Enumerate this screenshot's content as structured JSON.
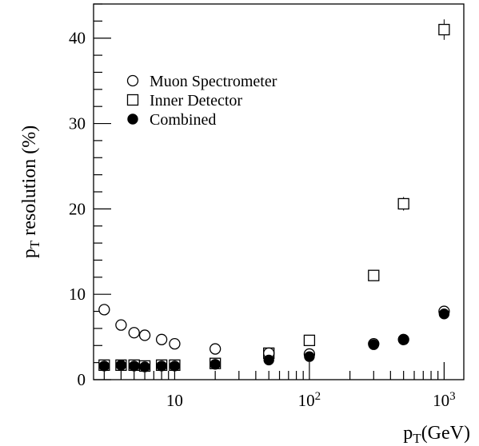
{
  "chart_data": {
    "type": "scatter",
    "x_scale": "log",
    "x_unit": "GeV",
    "y_unit": "%",
    "xlim": [
      2.5,
      1400
    ],
    "ylim": [
      0,
      44
    ],
    "x_tick_labels": [
      {
        "value": 10,
        "base": "10",
        "exp": ""
      },
      {
        "value": 100,
        "base": "10",
        "exp": "2"
      },
      {
        "value": 1000,
        "base": "10",
        "exp": "3"
      }
    ],
    "y_tick_labels": [
      "0",
      "10",
      "20",
      "30",
      "40"
    ],
    "y_ticks": [
      0,
      10,
      20,
      30,
      40
    ],
    "xlabel": {
      "main": "p",
      "sub": "T",
      "rest": "(GeV)"
    },
    "ylabel": {
      "main": "p",
      "sub": "T",
      "rest": " resolution (%)"
    },
    "legend_position": "top-left",
    "series": [
      {
        "name": "Muon Spectrometer",
        "marker": "open-circle",
        "x": [
          3,
          4,
          5,
          6,
          8,
          10,
          20,
          50,
          100,
          300,
          500,
          1000
        ],
        "y": [
          8.2,
          6.4,
          5.5,
          5.2,
          4.7,
          4.2,
          3.6,
          3.1,
          3.0,
          4.2,
          4.7,
          8.0
        ],
        "err": [
          0.6,
          0.3,
          0.3,
          0.3,
          0.3,
          0.3,
          0.3,
          0.3,
          0.3,
          0.3,
          0.3,
          0.3
        ]
      },
      {
        "name": "Inner Detector",
        "marker": "open-square",
        "x": [
          3,
          4,
          5,
          6,
          8,
          10,
          20,
          50,
          100,
          300,
          500,
          1000
        ],
        "y": [
          1.7,
          1.7,
          1.7,
          1.6,
          1.7,
          1.7,
          1.9,
          3.1,
          4.6,
          12.2,
          20.6,
          41.0
        ],
        "err": [
          0.1,
          0.1,
          0.1,
          0.1,
          0.1,
          0.1,
          0.1,
          0.3,
          0.3,
          0.5,
          0.8,
          1.2
        ]
      },
      {
        "name": "Combined",
        "marker": "filled-circle",
        "x": [
          3,
          4,
          5,
          6,
          8,
          10,
          20,
          50,
          100,
          300,
          500,
          1000
        ],
        "y": [
          1.6,
          1.7,
          1.6,
          1.5,
          1.6,
          1.6,
          1.8,
          2.3,
          2.7,
          4.1,
          4.7,
          7.7
        ],
        "err": [
          0.1,
          0.1,
          0.1,
          0.1,
          0.1,
          0.1,
          0.1,
          0.2,
          0.2,
          0.3,
          0.3,
          0.3
        ]
      }
    ]
  }
}
